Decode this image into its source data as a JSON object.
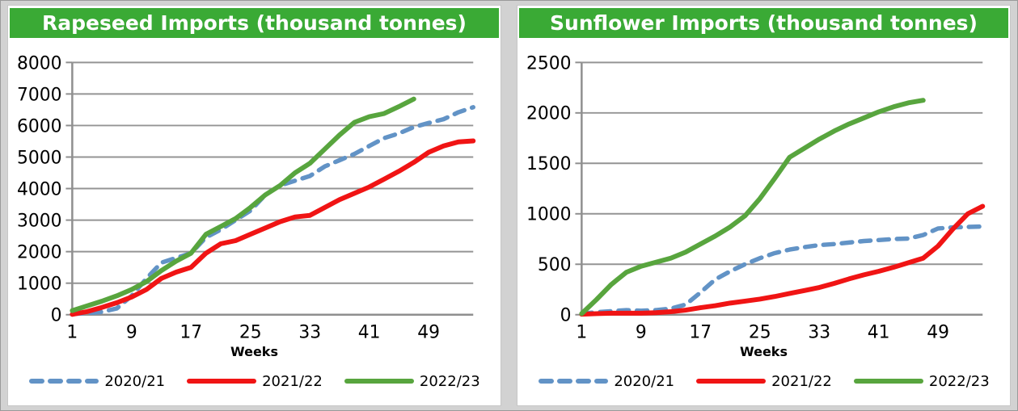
{
  "page": {
    "background_color": "#d2d2d2",
    "panel_background": "#ffffff"
  },
  "colors": {
    "title_bar_green": "#3aaa35",
    "title_text": "#ffffff",
    "gridline": "#949494",
    "axis_line": "#8f8f8f",
    "tick_label": "#000000"
  },
  "chart_data": [
    {
      "type": "line",
      "title": "Rapeseed Imports (thousand tonnes)",
      "xlabel": "Weeks",
      "ylabel": "",
      "grid": true,
      "legend_position": "bottom",
      "y_axis": {
        "min": 0,
        "max": 8000,
        "tick_step": 1000,
        "tick_labels": [
          "0",
          "1000",
          "2000",
          "3000",
          "4000",
          "5000",
          "6000",
          "7000",
          "8000"
        ]
      },
      "x_axis": {
        "min_week": 1,
        "max_week": 55,
        "tick_weeks": [
          1,
          9,
          17,
          25,
          33,
          41,
          49
        ],
        "tick_labels": [
          "1",
          "9",
          "17",
          "25",
          "33",
          "41",
          "49"
        ]
      },
      "series": [
        {
          "name": "2020/21",
          "color": "#6293c6",
          "style": "dashed",
          "weeks_start": 1,
          "weeks_step": 2,
          "values": [
            20,
            50,
            90,
            200,
            600,
            1150,
            1650,
            1800,
            1950,
            2450,
            2700,
            3000,
            3300,
            3800,
            4100,
            4250,
            4400,
            4700,
            4900,
            5100,
            5350,
            5600,
            5750,
            5950,
            6080,
            6200,
            6420,
            6580
          ]
        },
        {
          "name": "2021/22",
          "color": "#f01414",
          "style": "solid",
          "weeks_start": 1,
          "weeks_step": 2,
          "values": [
            10,
            100,
            230,
            380,
            560,
            800,
            1150,
            1350,
            1500,
            1950,
            2250,
            2350,
            2550,
            2750,
            2950,
            3100,
            3150,
            3400,
            3650,
            3850,
            4050,
            4300,
            4550,
            4830,
            5150,
            5350,
            5480,
            5510
          ]
        },
        {
          "name": "2022/23",
          "color": "#58a53e",
          "style": "solid",
          "weeks_start": 1,
          "weeks_step": 2,
          "values": [
            130,
            280,
            430,
            600,
            800,
            1050,
            1400,
            1700,
            1950,
            2550,
            2800,
            3050,
            3400,
            3800,
            4100,
            4500,
            4800,
            5250,
            5700,
            6100,
            6280,
            6380,
            6600,
            6840
          ]
        }
      ]
    },
    {
      "type": "line",
      "title": "Sunflower Imports (thousand tonnes)",
      "xlabel": "Weeks",
      "ylabel": "",
      "grid": true,
      "legend_position": "bottom",
      "y_axis": {
        "min": 0,
        "max": 2500,
        "tick_step": 500,
        "tick_labels": [
          "0",
          "500",
          "1000",
          "1500",
          "2000",
          "2500"
        ]
      },
      "x_axis": {
        "min_week": 1,
        "max_week": 55,
        "tick_weeks": [
          1,
          9,
          17,
          25,
          33,
          41,
          49
        ],
        "tick_labels": [
          "1",
          "9",
          "17",
          "25",
          "33",
          "41",
          "49"
        ]
      },
      "series": [
        {
          "name": "2020/21",
          "color": "#6293c6",
          "style": "dashed",
          "weeks_start": 1,
          "weeks_step": 2,
          "values": [
            10,
            25,
            35,
            45,
            40,
            45,
            60,
            100,
            220,
            350,
            430,
            500,
            560,
            610,
            645,
            670,
            690,
            700,
            715,
            730,
            740,
            750,
            755,
            790,
            855,
            865,
            870,
            875
          ]
        },
        {
          "name": "2021/22",
          "color": "#f01414",
          "style": "solid",
          "weeks_start": 1,
          "weeks_step": 2,
          "values": [
            5,
            10,
            15,
            15,
            15,
            20,
            30,
            45,
            70,
            90,
            115,
            135,
            155,
            180,
            210,
            240,
            270,
            310,
            355,
            395,
            430,
            470,
            515,
            560,
            680,
            850,
            1000,
            1075
          ]
        },
        {
          "name": "2022/23",
          "color": "#58a53e",
          "style": "solid",
          "weeks_start": 1,
          "weeks_step": 2,
          "values": [
            10,
            150,
            300,
            420,
            480,
            520,
            560,
            620,
            700,
            780,
            870,
            980,
            1150,
            1350,
            1560,
            1650,
            1740,
            1820,
            1890,
            1950,
            2010,
            2060,
            2100,
            2125
          ]
        }
      ]
    }
  ]
}
